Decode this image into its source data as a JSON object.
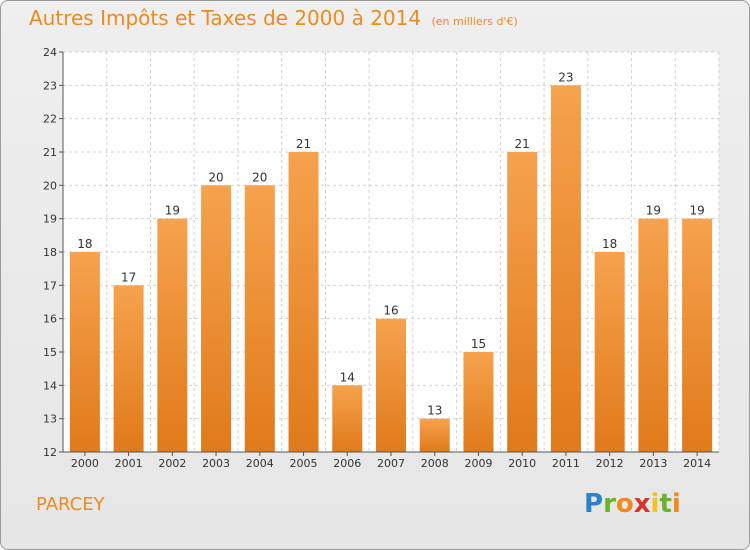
{
  "header": {
    "title": "Autres Impôts et Taxes de 2000 à 2014",
    "subtitle": "(en milliers d'€)"
  },
  "footer": {
    "commune": "PARCEY",
    "logo_text": "Proxiti"
  },
  "colors": {
    "bar_top": "#f6a24e",
    "bar_bottom": "#e07a1a",
    "accent": "#f08a1c",
    "grid": "#d0d0d0"
  },
  "chart_data": {
    "type": "bar",
    "title": "Autres Impôts et Taxes de 2000 à 2014",
    "subtitle": "(en milliers d'€)",
    "categories": [
      "2000",
      "2001",
      "2002",
      "2003",
      "2004",
      "2005",
      "2006",
      "2007",
      "2008",
      "2009",
      "2010",
      "2011",
      "2012",
      "2013",
      "2014"
    ],
    "values": [
      18,
      17,
      19,
      20,
      20,
      21,
      14,
      16,
      13,
      15,
      21,
      23,
      18,
      19,
      19
    ],
    "ylim": [
      12,
      24
    ],
    "yticks": [
      12,
      13,
      14,
      15,
      16,
      17,
      18,
      19,
      20,
      21,
      22,
      23,
      24
    ],
    "grid": true,
    "data_labels": true
  }
}
